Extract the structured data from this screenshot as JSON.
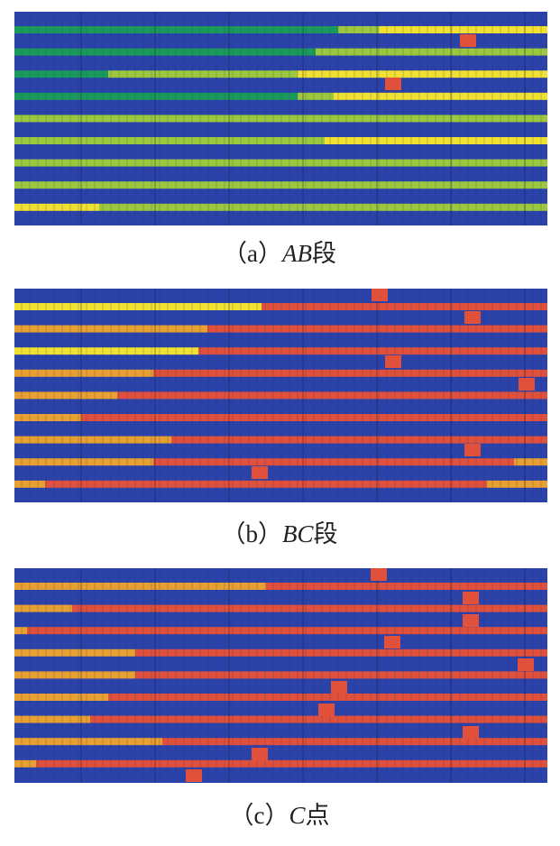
{
  "panels": [
    {
      "label": "（a）",
      "segment": "AB",
      "suffix": "段"
    },
    {
      "label": "（b）",
      "segment": "BC",
      "suffix": "段"
    },
    {
      "label": "（c）",
      "segment": "C",
      "suffix": "点"
    }
  ]
}
